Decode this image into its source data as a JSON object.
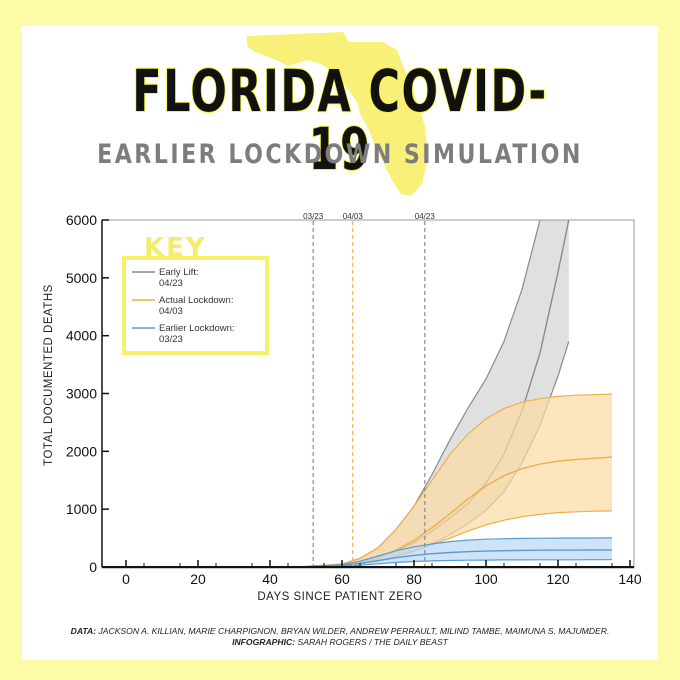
{
  "colors": {
    "background": "#fdfaa8",
    "florida_shape": "#f8f079",
    "key_border": "#f7f167",
    "key_title": "#f5ec6b"
  },
  "header": {
    "title": "FLORIDA COVID-19",
    "subtitle": "EARLIER LOCKDOWN SIMULATION"
  },
  "chart_data": {
    "type": "area",
    "xlabel": "DAYS SINCE PATIENT ZERO",
    "ylabel": "TOTAL DOCUMENTED DEATHS",
    "xlim": [
      -5,
      140
    ],
    "ylim": [
      0,
      6000
    ],
    "x_ticks": [
      0,
      20,
      40,
      60,
      80,
      100,
      120,
      140
    ],
    "y_ticks": [
      0,
      1000,
      2000,
      3000,
      4000,
      5000,
      6000
    ],
    "legend": {
      "title": "KEY",
      "placement": "top-left",
      "entries": [
        {
          "label_line1": "Early Lift:",
          "label_line2": "04/23",
          "color": "#8a8a8a"
        },
        {
          "label_line1": "Actual Lockdown:",
          "label_line2": "04/03",
          "color": "#f0ae4a"
        },
        {
          "label_line1": "Earlier Lockdown:",
          "label_line2": "03/23",
          "color": "#5b9bd5"
        }
      ]
    },
    "vlines": [
      {
        "x": 52,
        "label": "03/23",
        "color": "#5b9bd5"
      },
      {
        "x": 63,
        "label": "04/03",
        "color": "#f0ae4a"
      },
      {
        "x": 83,
        "label": "04/23",
        "color": "#8a8a8a"
      }
    ],
    "series": [
      {
        "name": "Early Lift: 04/23",
        "line_color": "#8a8a8a",
        "fill_color": "#d3d3d3",
        "x": [
          40,
          50,
          60,
          65,
          70,
          75,
          80,
          85,
          90,
          95,
          100,
          105,
          110,
          115,
          120,
          123
        ],
        "mid": [
          0,
          5,
          30,
          80,
          150,
          280,
          420,
          620,
          850,
          1100,
          1450,
          1950,
          2700,
          3700,
          5100,
          6000
        ],
        "lower": [
          0,
          3,
          20,
          50,
          100,
          180,
          280,
          400,
          560,
          750,
          980,
          1300,
          1800,
          2450,
          3300,
          3900
        ],
        "upper": [
          0,
          8,
          50,
          150,
          330,
          650,
          1050,
          1600,
          2200,
          2750,
          3250,
          3900,
          4800,
          6000,
          6000,
          6000
        ],
        "upper_end_x": 115,
        "lower_end_x": 128
      },
      {
        "name": "Actual Lockdown: 04/03",
        "line_color": "#f0ae4a",
        "fill_color": "#fcdba3",
        "x": [
          40,
          50,
          60,
          65,
          70,
          75,
          80,
          85,
          90,
          95,
          100,
          105,
          110,
          115,
          120,
          125,
          130,
          135
        ],
        "mid": [
          0,
          5,
          30,
          80,
          160,
          290,
          460,
          680,
          920,
          1180,
          1400,
          1580,
          1700,
          1780,
          1830,
          1860,
          1880,
          1900
        ],
        "lower": [
          0,
          3,
          20,
          50,
          100,
          180,
          270,
          380,
          500,
          620,
          730,
          810,
          870,
          910,
          940,
          955,
          965,
          970
        ],
        "upper": [
          0,
          8,
          50,
          150,
          330,
          650,
          1050,
          1500,
          1950,
          2300,
          2560,
          2740,
          2850,
          2910,
          2950,
          2970,
          2980,
          2990
        ]
      },
      {
        "name": "Earlier Lockdown: 03/23",
        "line_color": "#5b9bd5",
        "fill_color": "#b9d7f3",
        "x": [
          40,
          50,
          60,
          65,
          70,
          75,
          80,
          85,
          90,
          95,
          100,
          105,
          110,
          115,
          120,
          125,
          130,
          135
        ],
        "mid": [
          0,
          5,
          25,
          60,
          110,
          160,
          200,
          230,
          250,
          265,
          275,
          282,
          287,
          290,
          292,
          293,
          294,
          295
        ],
        "lower": [
          0,
          2,
          12,
          30,
          55,
          80,
          95,
          105,
          112,
          117,
          120,
          122,
          123,
          124,
          125,
          125,
          126,
          126
        ],
        "upper": [
          0,
          8,
          40,
          100,
          190,
          280,
          350,
          400,
          440,
          465,
          480,
          490,
          495,
          498,
          500,
          501,
          502,
          503
        ]
      }
    ]
  },
  "credits": {
    "data_label": "DATA:",
    "data_text": "JACKSON A. KILLIAN, MARIE CHARPIGNON, BRYAN WILDER, ANDREW PERRAULT, MILIND TAMBE, MAIMUNA S. MAJUMDER.",
    "info_label": "INFOGRAPHIC:",
    "info_text": "SARAH ROGERS / THE DAILY BEAST"
  }
}
